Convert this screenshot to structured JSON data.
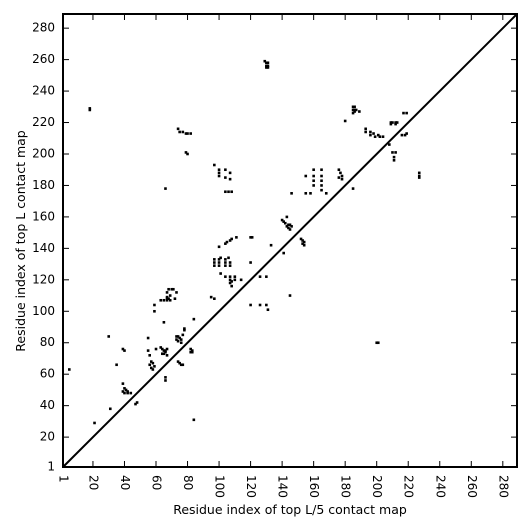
{
  "chart_data": {
    "type": "scatter",
    "xlabel": "Residue index of top L/5 contact map",
    "ylabel": "Residue index of top L contact map",
    "xlim": [
      1,
      289
    ],
    "ylim": [
      1,
      289
    ],
    "x_ticks": [
      "1",
      "20",
      "40",
      "60",
      "80",
      "100",
      "120",
      "140",
      "160",
      "180",
      "200",
      "220",
      "240",
      "260",
      "280"
    ],
    "y_ticks": [
      "1",
      "20",
      "40",
      "60",
      "80",
      "100",
      "120",
      "140",
      "160",
      "180",
      "200",
      "220",
      "240",
      "260",
      "280"
    ],
    "diagonal": true,
    "marker_color": "#000000",
    "series": [
      {
        "values": [
          [
            18,
            229
          ],
          [
            18,
            228
          ],
          [
            130,
            258
          ],
          [
            131,
            258
          ],
          [
            130,
            256
          ],
          [
            131,
            256
          ],
          [
            130,
            255
          ],
          [
            131,
            255
          ],
          [
            129,
            259
          ],
          [
            74,
            216
          ],
          [
            75,
            214
          ],
          [
            77,
            214
          ],
          [
            79,
            213
          ],
          [
            80,
            213
          ],
          [
            82,
            213
          ],
          [
            79,
            201
          ],
          [
            80,
            200
          ],
          [
            97,
            193
          ],
          [
            100,
            190
          ],
          [
            100,
            188
          ],
          [
            100,
            186
          ],
          [
            104,
            190
          ],
          [
            104,
            185
          ],
          [
            107,
            188
          ],
          [
            107,
            184
          ],
          [
            104,
            176
          ],
          [
            106,
            176
          ],
          [
            108,
            176
          ],
          [
            66,
            178
          ],
          [
            100,
            141
          ],
          [
            104,
            143
          ],
          [
            105,
            144
          ],
          [
            107,
            145
          ],
          [
            108,
            146
          ],
          [
            111,
            147
          ],
          [
            120,
            147
          ],
          [
            121,
            147
          ],
          [
            97,
            133
          ],
          [
            97,
            131
          ],
          [
            97,
            129
          ],
          [
            100,
            133
          ],
          [
            100,
            131
          ],
          [
            100,
            129
          ],
          [
            104,
            133
          ],
          [
            104,
            131
          ],
          [
            104,
            129
          ],
          [
            107,
            131
          ],
          [
            107,
            129
          ],
          [
            101,
            134
          ],
          [
            106,
            134
          ],
          [
            101,
            124
          ],
          [
            104,
            122
          ],
          [
            107,
            122
          ],
          [
            107,
            120
          ],
          [
            108,
            119
          ],
          [
            107,
            118
          ],
          [
            110,
            122
          ],
          [
            110,
            120
          ],
          [
            108,
            116
          ],
          [
            114,
            120
          ],
          [
            95,
            109
          ],
          [
            97,
            108
          ],
          [
            120,
            131
          ],
          [
            126,
            122
          ],
          [
            130,
            122
          ],
          [
            120,
            104
          ],
          [
            126,
            104
          ],
          [
            130,
            104
          ],
          [
            131,
            101
          ],
          [
            140,
            158
          ],
          [
            141,
            157
          ],
          [
            142,
            156
          ],
          [
            144,
            155
          ],
          [
            145,
            155
          ],
          [
            143,
            154
          ],
          [
            144,
            153
          ],
          [
            145,
            152
          ],
          [
            146,
            154
          ],
          [
            143,
            160
          ],
          [
            133,
            142
          ],
          [
            152,
            146
          ],
          [
            153,
            145
          ],
          [
            154,
            144
          ],
          [
            153,
            143
          ],
          [
            154,
            142
          ],
          [
            145,
            110
          ],
          [
            141,
            137
          ],
          [
            146,
            175
          ],
          [
            155,
            186
          ],
          [
            160,
            190
          ],
          [
            160,
            186
          ],
          [
            160,
            183
          ],
          [
            160,
            180
          ],
          [
            165,
            190
          ],
          [
            165,
            186
          ],
          [
            165,
            183
          ],
          [
            165,
            180
          ],
          [
            165,
            177
          ],
          [
            168,
            175
          ],
          [
            155,
            175
          ],
          [
            158,
            175
          ],
          [
            176,
            190
          ],
          [
            177,
            188
          ],
          [
            178,
            186
          ],
          [
            176,
            185
          ],
          [
            178,
            184
          ],
          [
            180,
            221
          ],
          [
            185,
            230
          ],
          [
            186,
            230
          ],
          [
            185,
            228
          ],
          [
            186,
            228
          ],
          [
            187,
            228
          ],
          [
            185,
            226
          ],
          [
            186,
            227
          ],
          [
            189,
            227
          ],
          [
            185,
            178
          ],
          [
            193,
            216
          ],
          [
            193,
            214
          ],
          [
            196,
            214
          ],
          [
            196,
            212
          ],
          [
            198,
            213
          ],
          [
            199,
            211
          ],
          [
            201,
            212
          ],
          [
            202,
            211
          ],
          [
            204,
            211
          ],
          [
            209,
            220
          ],
          [
            210,
            220
          ],
          [
            212,
            220
          ],
          [
            213,
            220
          ],
          [
            209,
            219
          ],
          [
            212,
            219
          ],
          [
            208,
            206
          ],
          [
            210,
            201
          ],
          [
            212,
            201
          ],
          [
            211,
            198
          ],
          [
            211,
            196
          ],
          [
            217,
            226
          ],
          [
            219,
            226
          ],
          [
            216,
            212
          ],
          [
            218,
            212
          ],
          [
            219,
            213
          ],
          [
            227,
            188
          ],
          [
            227,
            186
          ],
          [
            227,
            185
          ],
          [
            200,
            80
          ],
          [
            201,
            80
          ],
          [
            5,
            63
          ],
          [
            30,
            84
          ],
          [
            39,
            76
          ],
          [
            40,
            75
          ],
          [
            31,
            38
          ],
          [
            48,
            42
          ],
          [
            47,
            41
          ],
          [
            21,
            29
          ],
          [
            35,
            66
          ],
          [
            40,
            51
          ],
          [
            41,
            50
          ],
          [
            39,
            49
          ],
          [
            42,
            49
          ],
          [
            40,
            48
          ],
          [
            42,
            48
          ],
          [
            44,
            48
          ],
          [
            39,
            54
          ],
          [
            55,
            83
          ],
          [
            55,
            75
          ],
          [
            56,
            72
          ],
          [
            57,
            68
          ],
          [
            56,
            66
          ],
          [
            58,
            67
          ],
          [
            59,
            65
          ],
          [
            57,
            64
          ],
          [
            58,
            63
          ],
          [
            60,
            76
          ],
          [
            59,
            100
          ],
          [
            59,
            104
          ],
          [
            63,
            77
          ],
          [
            64,
            76
          ],
          [
            65,
            75
          ],
          [
            66,
            74
          ],
          [
            64,
            73
          ],
          [
            65,
            73
          ],
          [
            67,
            72
          ],
          [
            66,
            75
          ],
          [
            67,
            76
          ],
          [
            66,
            58
          ],
          [
            66,
            56
          ],
          [
            65,
            93
          ],
          [
            63,
            107
          ],
          [
            65,
            107
          ],
          [
            67,
            107
          ],
          [
            69,
            107
          ],
          [
            67,
            108
          ],
          [
            68,
            108
          ],
          [
            67,
            109
          ],
          [
            69,
            110
          ],
          [
            67,
            112
          ],
          [
            68,
            114
          ],
          [
            70,
            114
          ],
          [
            71,
            114
          ],
          [
            72,
            108
          ],
          [
            73,
            112
          ],
          [
            73,
            84
          ],
          [
            74,
            84
          ],
          [
            73,
            82
          ],
          [
            75,
            83
          ],
          [
            76,
            82
          ],
          [
            76,
            80
          ],
          [
            74,
            81
          ],
          [
            77,
            85
          ],
          [
            78,
            88
          ],
          [
            78,
            89
          ],
          [
            82,
            76
          ],
          [
            83,
            75
          ],
          [
            82,
            74
          ],
          [
            83,
            74
          ],
          [
            84,
            95
          ],
          [
            84,
            31
          ],
          [
            74,
            68
          ],
          [
            75,
            67
          ],
          [
            76,
            66
          ],
          [
            77,
            66
          ]
        ]
      }
    ]
  }
}
